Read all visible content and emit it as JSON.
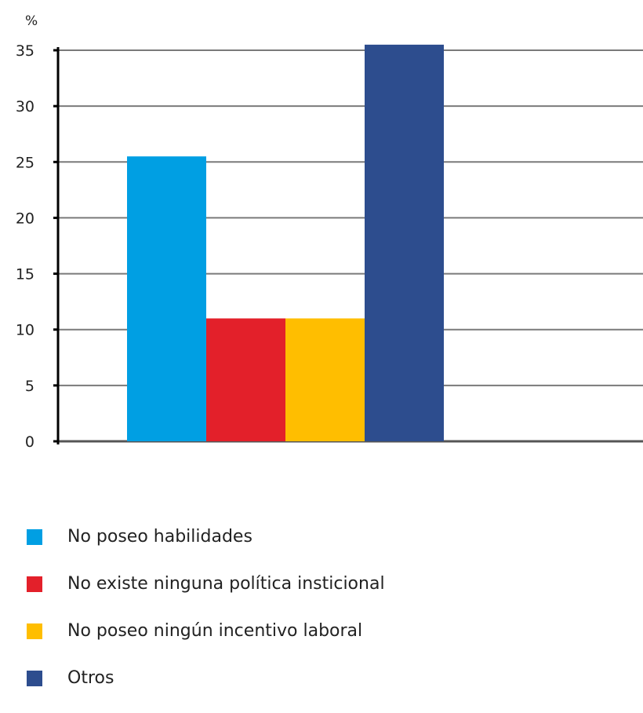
{
  "chart_data": {
    "type": "bar",
    "ylabel": "%",
    "ylim": [
      0,
      35
    ],
    "yticks": [
      "0",
      "5",
      "10",
      "15",
      "20",
      "25",
      "30",
      "35"
    ],
    "grid": true,
    "legend": "bottom",
    "categories": [
      "No poseo habilidades",
      "No existe ninguna política insticional",
      "No poseo ningún incentivo laboral",
      "Otros"
    ],
    "values": [
      25.5,
      11,
      11,
      35.5
    ],
    "colors": [
      "#009FE3",
      "#E3202A",
      "#FFBE00",
      "#2D4D8E"
    ]
  }
}
